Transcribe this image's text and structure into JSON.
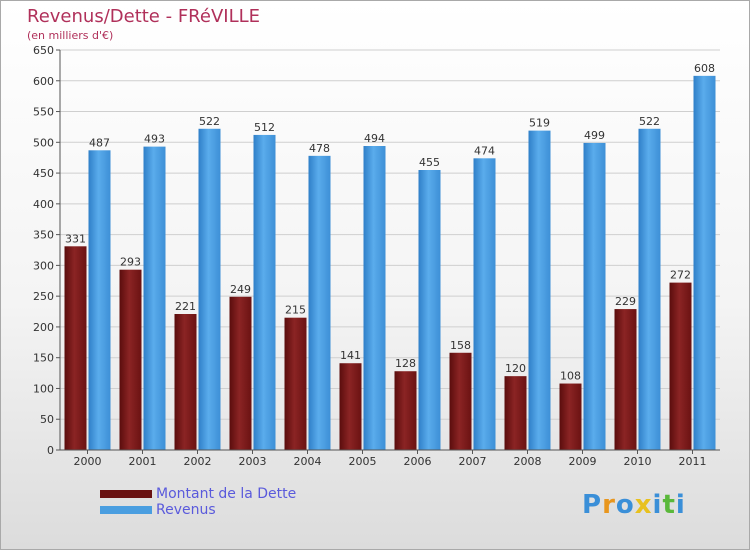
{
  "title": "Revenus/Dette - FRéVILLE",
  "subtitle": "(en milliers d'€)",
  "logo": {
    "letters": [
      "P",
      "r",
      "o",
      "x",
      "i",
      "t",
      "i"
    ],
    "colors": [
      "#3a8fd8",
      "#e8961e",
      "#3a8fd8",
      "#e8c11e",
      "#3a8fd8",
      "#5ab83a",
      "#3a8fd8"
    ]
  },
  "colors": {
    "dette": "#8b1a1a",
    "revenus": "#4a9ee0",
    "title": "#b0305a",
    "legend_text": "#5a5adc"
  },
  "chart_data": {
    "type": "bar",
    "title": "Revenus/Dette - FRéVILLE",
    "ylabel": "(en milliers d'€)",
    "xlabel": "",
    "ylim": [
      0,
      650
    ],
    "yticks": [
      0,
      50,
      100,
      150,
      200,
      250,
      300,
      350,
      400,
      450,
      500,
      550,
      600,
      650
    ],
    "categories": [
      "2000",
      "2001",
      "2002",
      "2003",
      "2004",
      "2005",
      "2006",
      "2007",
      "2008",
      "2009",
      "2010",
      "2011"
    ],
    "series": [
      {
        "name": "Montant de la Dette",
        "values": [
          331,
          293,
          221,
          249,
          215,
          141,
          128,
          158,
          120,
          108,
          229,
          272
        ]
      },
      {
        "name": "Revenus",
        "values": [
          487,
          493,
          522,
          512,
          478,
          494,
          455,
          474,
          519,
          499,
          522,
          608
        ]
      }
    ],
    "legend_position": "bottom-left",
    "grid": true
  }
}
